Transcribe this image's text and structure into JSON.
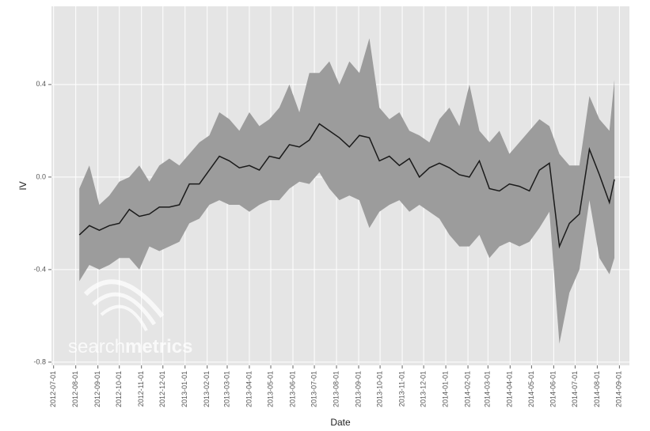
{
  "chart_data": {
    "type": "line",
    "xlabel": "Date",
    "ylabel": "IV",
    "watermark": {
      "light": "search",
      "bold": "metrics"
    },
    "line_color": "#1a1a1a",
    "band_color": "#9c9c9c",
    "grid": true,
    "x": [
      "2012-08-06",
      "2012-08-20",
      "2012-09-03",
      "2012-09-17",
      "2012-10-01",
      "2012-10-15",
      "2012-10-29",
      "2012-11-12",
      "2012-11-26",
      "2012-12-10",
      "2012-12-24",
      "2013-01-07",
      "2013-01-21",
      "2013-02-04",
      "2013-02-18",
      "2013-03-04",
      "2013-03-18",
      "2013-04-01",
      "2013-04-15",
      "2013-04-29",
      "2013-05-13",
      "2013-05-27",
      "2013-06-10",
      "2013-06-24",
      "2013-07-08",
      "2013-07-22",
      "2013-08-05",
      "2013-08-19",
      "2013-09-02",
      "2013-09-16",
      "2013-09-30",
      "2013-10-14",
      "2013-10-28",
      "2013-11-11",
      "2013-11-25",
      "2013-12-09",
      "2013-12-23",
      "2014-01-06",
      "2014-01-20",
      "2014-02-03",
      "2014-02-17",
      "2014-03-03",
      "2014-03-17",
      "2014-03-31",
      "2014-04-14",
      "2014-04-28",
      "2014-05-12",
      "2014-05-26",
      "2014-06-09",
      "2014-06-23",
      "2014-07-07",
      "2014-07-21",
      "2014-08-04",
      "2014-08-18",
      "2014-08-25"
    ],
    "values": [
      -0.25,
      -0.21,
      -0.23,
      -0.21,
      -0.2,
      -0.14,
      -0.17,
      -0.16,
      -0.13,
      -0.13,
      -0.12,
      -0.03,
      -0.03,
      0.03,
      0.09,
      0.07,
      0.04,
      0.05,
      0.03,
      0.09,
      0.08,
      0.14,
      0.13,
      0.16,
      0.23,
      0.2,
      0.17,
      0.13,
      0.18,
      0.17,
      0.07,
      0.09,
      0.05,
      0.08,
      0.0,
      0.04,
      0.06,
      0.04,
      0.01,
      0.0,
      0.07,
      -0.05,
      -0.06,
      -0.03,
      -0.04,
      -0.06,
      0.03,
      0.06,
      -0.3,
      -0.2,
      -0.16,
      0.12,
      0.01,
      -0.11,
      -0.01
    ],
    "upper": [
      -0.05,
      0.05,
      -0.12,
      -0.08,
      -0.02,
      0.0,
      0.05,
      -0.02,
      0.05,
      0.08,
      0.05,
      0.1,
      0.15,
      0.18,
      0.28,
      0.25,
      0.2,
      0.28,
      0.22,
      0.25,
      0.3,
      0.4,
      0.28,
      0.45,
      0.45,
      0.5,
      0.4,
      0.5,
      0.45,
      0.6,
      0.3,
      0.25,
      0.28,
      0.2,
      0.18,
      0.15,
      0.25,
      0.3,
      0.22,
      0.4,
      0.2,
      0.15,
      0.2,
      0.1,
      0.15,
      0.2,
      0.25,
      0.22,
      0.1,
      0.05,
      0.05,
      0.35,
      0.25,
      0.2,
      0.42
    ],
    "lower": [
      -0.45,
      -0.38,
      -0.4,
      -0.38,
      -0.35,
      -0.35,
      -0.4,
      -0.3,
      -0.32,
      -0.3,
      -0.28,
      -0.2,
      -0.18,
      -0.12,
      -0.1,
      -0.12,
      -0.12,
      -0.15,
      -0.12,
      -0.1,
      -0.1,
      -0.05,
      -0.02,
      -0.03,
      0.02,
      -0.05,
      -0.1,
      -0.08,
      -0.1,
      -0.22,
      -0.15,
      -0.12,
      -0.1,
      -0.15,
      -0.12,
      -0.15,
      -0.18,
      -0.25,
      -0.3,
      -0.3,
      -0.25,
      -0.35,
      -0.3,
      -0.28,
      -0.3,
      -0.28,
      -0.22,
      -0.15,
      -0.72,
      -0.5,
      -0.4,
      -0.1,
      -0.35,
      -0.42,
      -0.35
    ],
    "xlim": [
      "2012-06-28",
      "2014-09-15"
    ],
    "xticks": [
      "2012-07-01",
      "2012-08-01",
      "2012-09-01",
      "2012-10-01",
      "2012-11-01",
      "2012-12-01",
      "2013-01-01",
      "2013-02-01",
      "2013-03-01",
      "2013-04-01",
      "2013-05-01",
      "2013-06-01",
      "2013-07-01",
      "2013-08-01",
      "2013-09-01",
      "2013-10-01",
      "2013-11-01",
      "2013-12-01",
      "2014-01-01",
      "2014-02-01",
      "2014-03-01",
      "2014-04-01",
      "2014-05-01",
      "2014-06-01",
      "2014-07-01",
      "2014-08-01",
      "2014-09-01"
    ],
    "ylim": [
      -0.814,
      0.738
    ],
    "yticks": [
      -0.8,
      -0.4,
      {
        "value": 0,
        "label": "0.0"
      },
      0.4
    ]
  }
}
